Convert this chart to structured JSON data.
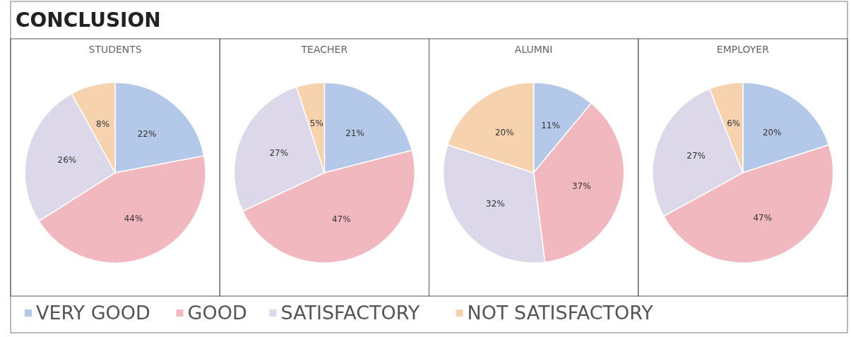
{
  "chart_data": [
    {
      "type": "other",
      "title": "CONCLUSION"
    },
    {
      "type": "pie",
      "title": "STUDENTS",
      "categories": [
        "VERY GOOD",
        "GOOD",
        "SATISFACTORY",
        "NOT SATISFACTORY"
      ],
      "values": [
        22,
        44,
        26,
        8
      ],
      "colors": [
        "#b4c9ea",
        "#f2b8c0",
        "#dcd8ea",
        "#f7d2ae"
      ],
      "value_labels": [
        "22%",
        "44%",
        "26%",
        "8%"
      ],
      "legend": "bottom"
    },
    {
      "type": "pie",
      "title": "TEACHER",
      "categories": [
        null,
        null,
        null,
        null
      ],
      "values": [
        21,
        47,
        27,
        5
      ],
      "colors": [
        "#b4c9ea",
        "#f2b8c0",
        "#dcd8ea",
        "#f7d2ae"
      ],
      "value_labels": [
        "21%",
        "47%",
        "27%",
        "5%"
      ]
    },
    {
      "type": "pie",
      "title": "ALUMNI",
      "categories": [
        null,
        null,
        null,
        null
      ],
      "values": [
        11,
        37,
        32,
        20
      ],
      "colors": [
        "#b4c9ea",
        "#f2b8c0",
        "#dcd8ea",
        "#f7d2ae"
      ],
      "value_labels": [
        "11%",
        "37%",
        "32%",
        "20%"
      ]
    },
    {
      "type": "pie",
      "title": "EMPLOYER",
      "categories": [
        null,
        null,
        null,
        null
      ],
      "values": [
        20,
        47,
        27,
        6
      ],
      "colors": [
        "#b4c9ea",
        "#f2b8c0",
        "#dcd8ea",
        "#f7d2ae"
      ],
      "value_labels": [
        "20%",
        "47%",
        "27%",
        "6%"
      ]
    }
  ]
}
